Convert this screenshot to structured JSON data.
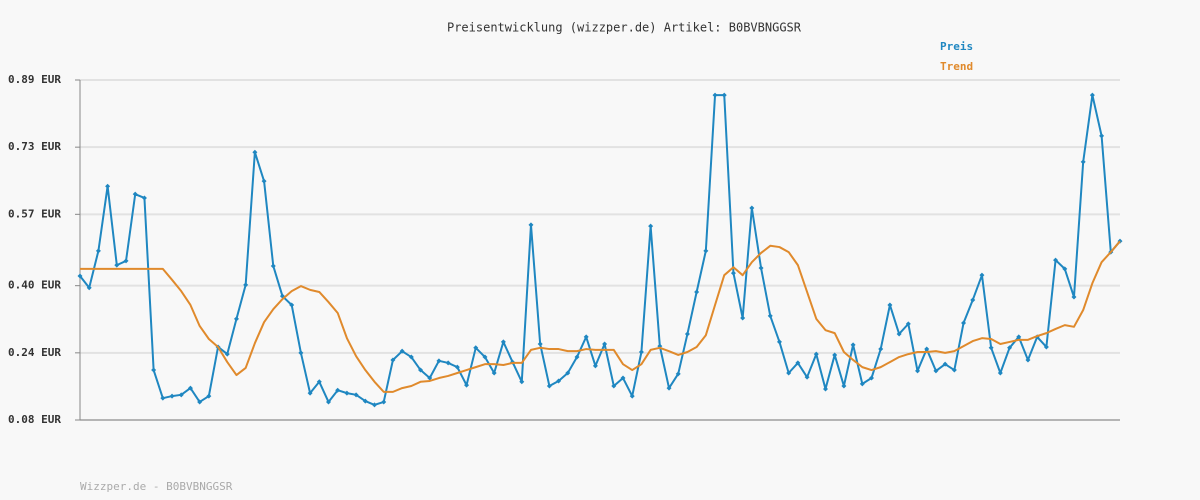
{
  "chart_data": {
    "type": "line",
    "title": "Preisentwicklung (wizzper.de) Artikel: B0BVBNGGSR",
    "footer": "Wizzper.de - B0BVBNGGSR",
    "ylim": [
      0.08,
      0.89
    ],
    "yticks": [
      {
        "value": 0.89,
        "label": "0.89 EUR"
      },
      {
        "value": 0.73,
        "label": "0.73 EUR"
      },
      {
        "value": 0.57,
        "label": "0.57 EUR"
      },
      {
        "value": 0.4,
        "label": "0.40 EUR"
      },
      {
        "value": 0.24,
        "label": "0.24 EUR"
      },
      {
        "value": 0.08,
        "label": "0.08 EUR"
      }
    ],
    "grid": true,
    "legend": "top-right",
    "series": [
      {
        "name": "Preis",
        "color": "#1f87c1",
        "markers": true,
        "values": [
          0.423,
          0.395,
          0.483,
          0.637,
          0.449,
          0.459,
          0.618,
          0.609,
          0.199,
          0.132,
          0.137,
          0.14,
          0.156,
          0.123,
          0.137,
          0.254,
          0.237,
          0.321,
          0.402,
          0.718,
          0.649,
          0.447,
          0.375,
          0.354,
          0.24,
          0.144,
          0.171,
          0.123,
          0.151,
          0.144,
          0.14,
          0.125,
          0.116,
          0.123,
          0.223,
          0.244,
          0.23,
          0.199,
          0.18,
          0.221,
          0.216,
          0.206,
          0.163,
          0.252,
          0.23,
          0.192,
          0.266,
          0.218,
          0.171,
          0.545,
          0.261,
          0.161,
          0.173,
          0.192,
          0.23,
          0.278,
          0.209,
          0.261,
          0.161,
          0.18,
          0.137,
          0.242,
          0.542,
          0.256,
          0.156,
          0.19,
          0.285,
          0.385,
          0.483,
          0.854,
          0.854,
          0.43,
          0.323,
          0.585,
          0.442,
          0.328,
          0.266,
          0.192,
          0.216,
          0.182,
          0.237,
          0.154,
          0.235,
          0.161,
          0.259,
          0.166,
          0.18,
          0.249,
          0.354,
          0.285,
          0.309,
          0.197,
          0.249,
          0.197,
          0.213,
          0.199,
          0.311,
          0.366,
          0.425,
          0.252,
          0.192,
          0.252,
          0.278,
          0.223,
          0.278,
          0.254,
          0.461,
          0.44,
          0.373,
          0.695,
          0.854,
          0.757,
          0.48,
          0.506
        ]
      },
      {
        "name": "Trend",
        "color": "#e08a2c",
        "markers": false,
        "values": [
          0.44,
          0.44,
          0.44,
          0.44,
          0.44,
          0.44,
          0.44,
          0.44,
          0.44,
          0.44,
          0.414,
          0.387,
          0.354,
          0.304,
          0.273,
          0.254,
          0.218,
          0.187,
          0.204,
          0.263,
          0.313,
          0.344,
          0.368,
          0.387,
          0.399,
          0.39,
          0.385,
          0.361,
          0.335,
          0.275,
          0.232,
          0.199,
          0.171,
          0.147,
          0.147,
          0.156,
          0.161,
          0.171,
          0.173,
          0.18,
          0.185,
          0.192,
          0.199,
          0.206,
          0.213,
          0.213,
          0.211,
          0.216,
          0.216,
          0.247,
          0.252,
          0.249,
          0.249,
          0.244,
          0.244,
          0.249,
          0.247,
          0.247,
          0.247,
          0.213,
          0.199,
          0.213,
          0.247,
          0.252,
          0.244,
          0.235,
          0.242,
          0.254,
          0.282,
          0.354,
          0.425,
          0.444,
          0.425,
          0.456,
          0.478,
          0.495,
          0.492,
          0.48,
          0.449,
          0.385,
          0.321,
          0.294,
          0.287,
          0.242,
          0.223,
          0.206,
          0.199,
          0.206,
          0.218,
          0.23,
          0.237,
          0.242,
          0.242,
          0.244,
          0.24,
          0.244,
          0.256,
          0.268,
          0.275,
          0.273,
          0.261,
          0.266,
          0.271,
          0.271,
          0.28,
          0.287,
          0.297,
          0.306,
          0.302,
          0.342,
          0.406,
          0.456,
          0.48,
          0.506
        ]
      }
    ]
  }
}
